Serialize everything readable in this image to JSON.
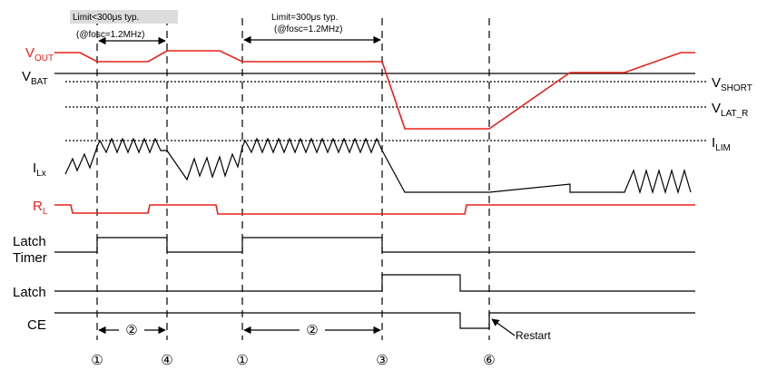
{
  "colors": {
    "red_signal": "#e8201c",
    "black": "#000000"
  },
  "labels": {
    "vout": {
      "main": "V",
      "sub": "OUT"
    },
    "vbat": {
      "main": "V",
      "sub": "BAT"
    },
    "ilx": {
      "main": "I",
      "sub": "Lx"
    },
    "rl": {
      "main": "R",
      "sub": "L"
    },
    "latch_timer_1": "Latch",
    "latch_timer_2": "Timer",
    "latch": "Latch",
    "ce": "CE",
    "vshort": {
      "main": "V",
      "sub": "SHORT"
    },
    "vlat_r": {
      "main": "V",
      "sub": "LAT_R"
    },
    "ilim": {
      "main": "I",
      "sub": "LIM"
    }
  },
  "annotations": {
    "limit_lt_1": "Limit<300μs typ.",
    "limit_lt_2": "(@fosc=1.2MHz)",
    "limit_eq_1": "Limit=300μs typ.",
    "limit_eq_2": "(@fosc=1.2MHz)",
    "restart": "Restart"
  },
  "events": {
    "e1a": "①",
    "e4": "④",
    "e1b": "①",
    "e3": "③",
    "e6": "⑥",
    "period_a": "②",
    "period_b": "②"
  }
}
